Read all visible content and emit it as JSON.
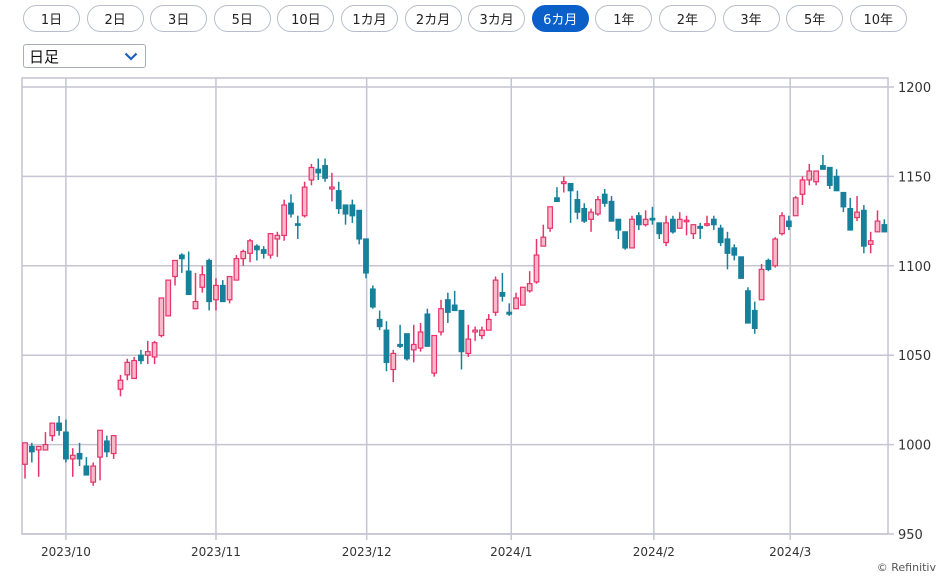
{
  "range_buttons": [
    "1日",
    "2日",
    "3日",
    "5日",
    "10日",
    "1カ月",
    "2カ月",
    "3カ月",
    "6カ月",
    "1年",
    "2年",
    "3年",
    "5年",
    "10年"
  ],
  "active_range": "6カ月",
  "interval_select": {
    "value": "日足",
    "icon": "chevron-down-icon"
  },
  "copyright": "© Refinitiv",
  "colors": {
    "up": "#e8336b",
    "up_fill": "#f8b9cb",
    "down": "#17809b",
    "grid": "#c4c4d2",
    "accent": "#0b5fc9"
  },
  "chart_data": {
    "type": "candlestick",
    "title": "",
    "y_axis": {
      "position": "right",
      "ylim": [
        950,
        1200
      ],
      "ticks": [
        1200,
        1150,
        1100,
        1050,
        1000,
        950
      ]
    },
    "x_ticks": [
      {
        "label": "2023/10",
        "index": 6
      },
      {
        "label": "2023/11",
        "index": 28
      },
      {
        "label": "2023/12",
        "index": 50.1
      },
      {
        "label": "2024/1",
        "index": 71.3
      },
      {
        "label": "2024/2",
        "index": 92.2
      },
      {
        "label": "2024/3",
        "index": 112.2
      }
    ],
    "grid": true,
    "ohlc_fields": [
      "open",
      "high",
      "low",
      "close"
    ],
    "ohlc": [
      [
        989,
        1001,
        981,
        1001
      ],
      [
        999,
        1001,
        990,
        996
      ],
      [
        997,
        999,
        982,
        999
      ],
      [
        997,
        1007,
        997,
        1000
      ],
      [
        1005,
        1012,
        1002,
        1012
      ],
      [
        1012,
        1016,
        1005,
        1008
      ],
      [
        1007,
        1014,
        990,
        992
      ],
      [
        992,
        998,
        982,
        994
      ],
      [
        995,
        1001,
        988,
        992
      ],
      [
        988,
        993,
        983,
        983
      ],
      [
        979,
        990,
        977,
        988
      ],
      [
        993,
        1008,
        980,
        1008
      ],
      [
        1002,
        1005,
        993,
        996
      ],
      [
        995,
        1005,
        992,
        1005
      ],
      [
        1031,
        1039,
        1027,
        1036
      ],
      [
        1039,
        1048,
        1036,
        1046
      ],
      [
        1037,
        1049,
        1037,
        1047
      ],
      [
        1050,
        1053,
        1045,
        1047
      ],
      [
        1050,
        1058,
        1045,
        1052
      ],
      [
        1049,
        1058,
        1045,
        1057
      ],
      [
        1061,
        1082,
        1060,
        1082
      ],
      [
        1072,
        1092,
        1072,
        1092
      ],
      [
        1094,
        1103,
        1089,
        1103
      ],
      [
        1106,
        1107,
        1096,
        1104
      ],
      [
        1097,
        1108,
        1084,
        1084
      ],
      [
        1076,
        1096,
        1076,
        1080
      ],
      [
        1088,
        1100,
        1085,
        1095
      ],
      [
        1103,
        1104,
        1075,
        1080
      ],
      [
        1081,
        1093,
        1075,
        1089
      ],
      [
        1089,
        1092,
        1080,
        1080
      ],
      [
        1081,
        1094,
        1079,
        1094
      ],
      [
        1092,
        1106,
        1092,
        1104
      ],
      [
        1104,
        1109,
        1100,
        1108
      ],
      [
        1107,
        1115,
        1102,
        1114
      ],
      [
        1111,
        1112,
        1103,
        1109
      ],
      [
        1109,
        1111,
        1104,
        1107
      ],
      [
        1106,
        1118,
        1104,
        1118
      ],
      [
        1115,
        1119,
        1105,
        1117
      ],
      [
        1117,
        1137,
        1114,
        1134
      ],
      [
        1135,
        1140,
        1127,
        1129
      ],
      [
        1123.5,
        1128,
        1115,
        1123
      ],
      [
        1128,
        1147,
        1127,
        1144
      ],
      [
        1148,
        1157,
        1145,
        1155
      ],
      [
        1154,
        1160,
        1148,
        1152
      ],
      [
        1156,
        1160,
        1147,
        1149
      ],
      [
        1143,
        1152,
        1136,
        1144
      ],
      [
        1142,
        1147,
        1129,
        1132
      ],
      [
        1134,
        1134,
        1123,
        1129
      ],
      [
        1134,
        1137,
        1124,
        1128
      ],
      [
        1131,
        1131,
        1112,
        1115
      ],
      [
        1115,
        1115,
        1093,
        1096
      ],
      [
        1087,
        1089,
        1076,
        1077
      ],
      [
        1070,
        1075,
        1064,
        1066
      ],
      [
        1064,
        1069,
        1041,
        1046
      ],
      [
        1042,
        1053,
        1035,
        1051
      ],
      [
        1056,
        1067,
        1054,
        1055
      ],
      [
        1062,
        1062,
        1047,
        1048
      ],
      [
        1053,
        1067,
        1046,
        1056
      ],
      [
        1054,
        1068,
        1052,
        1063
      ],
      [
        1073,
        1076,
        1055,
        1055
      ],
      [
        1040,
        1061,
        1038,
        1061
      ],
      [
        1063,
        1081,
        1061,
        1076
      ],
      [
        1081,
        1085,
        1068,
        1074
      ],
      [
        1078,
        1086,
        1075,
        1075
      ],
      [
        1075,
        1075,
        1042,
        1052
      ],
      [
        1051,
        1067,
        1049,
        1059
      ],
      [
        1063,
        1066,
        1058,
        1064
      ],
      [
        1061,
        1066,
        1059,
        1064
      ],
      [
        1064,
        1073,
        1064,
        1070
      ],
      [
        1074,
        1094,
        1072,
        1092
      ],
      [
        1085,
        1096,
        1080,
        1083
      ],
      [
        1074,
        1079,
        1072,
        1073
      ],
      [
        1076,
        1085,
        1076,
        1082
      ],
      [
        1078,
        1088,
        1078,
        1088
      ],
      [
        1086,
        1097,
        1085,
        1090
      ],
      [
        1091,
        1115,
        1090,
        1106
      ],
      [
        1111,
        1123,
        1111,
        1116
      ],
      [
        1121,
        1133,
        1119,
        1133
      ],
      [
        1138,
        1144,
        1136,
        1136
      ],
      [
        1146,
        1150,
        1141,
        1147
      ],
      [
        1146,
        1146,
        1124,
        1142
      ],
      [
        1137,
        1142,
        1126,
        1130
      ],
      [
        1132,
        1135,
        1124,
        1125
      ],
      [
        1126,
        1132,
        1119,
        1130
      ],
      [
        1129,
        1139,
        1128,
        1137
      ],
      [
        1140,
        1143,
        1133,
        1135
      ],
      [
        1136,
        1139,
        1125,
        1125
      ],
      [
        1126,
        1126,
        1115,
        1120
      ],
      [
        1119,
        1119,
        1109,
        1110
      ],
      [
        1110,
        1128,
        1110,
        1126
      ],
      [
        1128,
        1130,
        1120,
        1123
      ],
      [
        1123,
        1131,
        1122,
        1126
      ],
      [
        1126.5,
        1133,
        1123,
        1126
      ],
      [
        1124,
        1124,
        1115,
        1118
      ],
      [
        1113,
        1128,
        1111,
        1124
      ],
      [
        1126,
        1128,
        1118,
        1119
      ],
      [
        1121,
        1130,
        1121,
        1126
      ],
      [
        1125,
        1128,
        1117,
        1125.5
      ],
      [
        1118,
        1123,
        1115,
        1123
      ],
      [
        1122,
        1124,
        1115,
        1121
      ],
      [
        1123,
        1128,
        1122,
        1123.5
      ],
      [
        1126,
        1128,
        1120,
        1123
      ],
      [
        1121,
        1123,
        1111,
        1113
      ],
      [
        1115,
        1119,
        1098,
        1107
      ],
      [
        1110,
        1112,
        1103,
        1106
      ],
      [
        1105,
        1105,
        1093,
        1093
      ],
      [
        1086,
        1088,
        1068,
        1068
      ],
      [
        1075,
        1080,
        1062,
        1065
      ],
      [
        1081,
        1101,
        1081,
        1098
      ],
      [
        1103,
        1104,
        1097,
        1098
      ],
      [
        1100,
        1116,
        1099,
        1115
      ],
      [
        1118,
        1130,
        1117,
        1128
      ],
      [
        1125,
        1128,
        1120,
        1122
      ],
      [
        1128,
        1139,
        1128,
        1138
      ],
      [
        1140,
        1150,
        1134,
        1148
      ],
      [
        1148,
        1157,
        1145,
        1153
      ],
      [
        1147,
        1153,
        1145,
        1153
      ],
      [
        1156,
        1162,
        1154,
        1154
      ],
      [
        1155,
        1155,
        1143,
        1145
      ],
      [
        1150,
        1154,
        1142,
        1142
      ],
      [
        1141,
        1141,
        1130,
        1133
      ],
      [
        1132,
        1138,
        1120,
        1120
      ],
      [
        1127,
        1139,
        1125,
        1130
      ],
      [
        1131,
        1134,
        1107,
        1111
      ],
      [
        1112,
        1119,
        1107,
        1114
      ],
      [
        1119,
        1131,
        1119,
        1125
      ],
      [
        1123,
        1126,
        1119,
        1119
      ]
    ]
  }
}
